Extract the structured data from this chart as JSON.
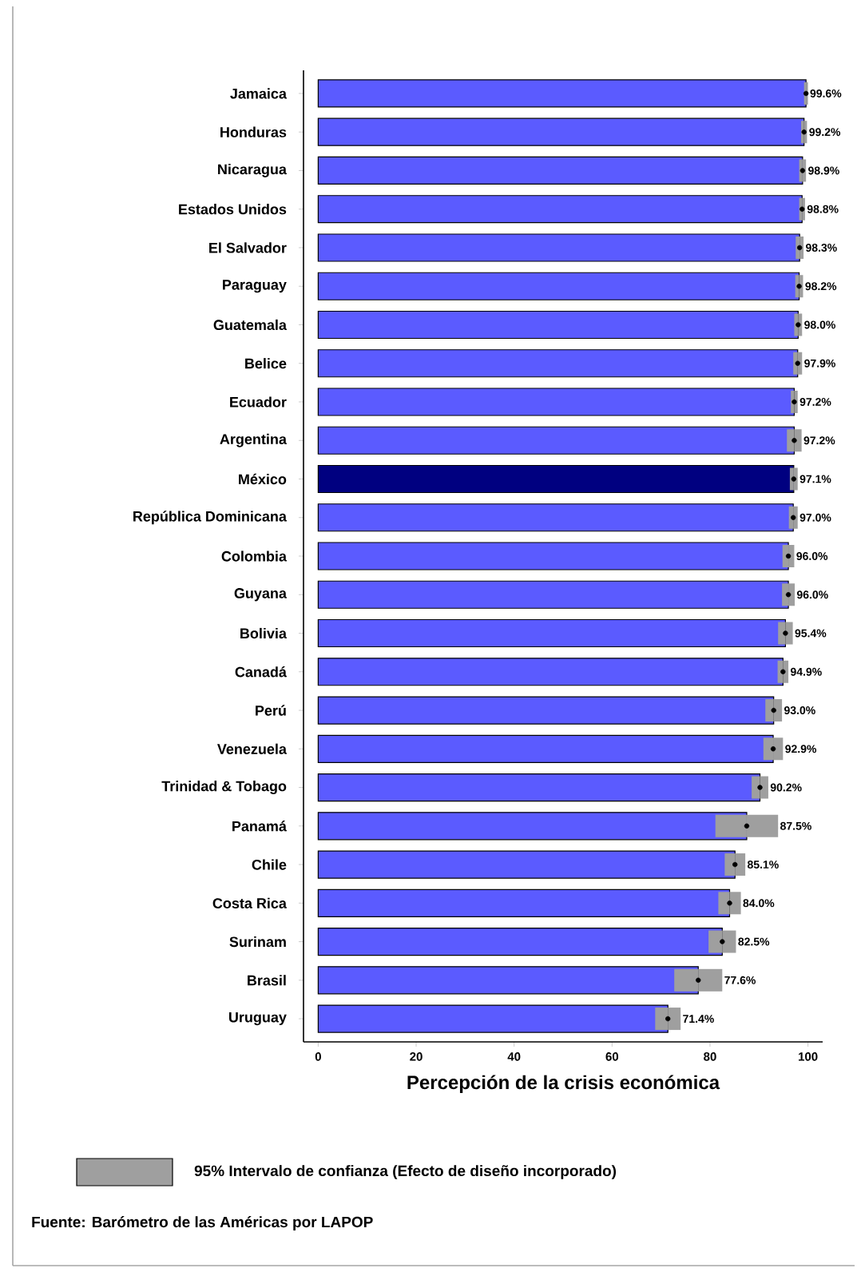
{
  "chart_data": {
    "type": "bar",
    "orientation": "horizontal",
    "xlabel": "Percepción de la crisis económica",
    "categories": [
      "Jamaica",
      "Honduras",
      "Nicaragua",
      "Estados Unidos",
      "El Salvador",
      "Paraguay",
      "Guatemala",
      "Belice",
      "Ecuador",
      "Argentina",
      "México",
      "República Dominicana",
      "Colombia",
      "Guyana",
      "Bolivia",
      "Canadá",
      "Perú",
      "Venezuela",
      "Trinidad & Tobago",
      "Panamá",
      "Chile",
      "Costa Rica",
      "Surinam",
      "Brasil",
      "Uruguay"
    ],
    "series": [
      {
        "values": [
          99.6,
          99.2,
          98.9,
          98.8,
          98.3,
          98.2,
          98.0,
          97.9,
          97.2,
          97.2,
          97.1,
          97.0,
          96.0,
          96.0,
          95.4,
          94.9,
          93.0,
          92.9,
          90.2,
          87.5,
          85.1,
          84.0,
          82.5,
          77.6,
          71.4
        ],
        "errors": [
          0.4,
          0.6,
          0.7,
          0.6,
          0.8,
          0.8,
          0.8,
          0.9,
          0.7,
          1.5,
          0.8,
          0.9,
          1.2,
          1.3,
          1.5,
          1.1,
          1.7,
          2.0,
          1.7,
          6.4,
          2.1,
          2.3,
          2.8,
          4.9,
          2.6
        ],
        "value_labels": [
          "99.6%",
          "99.2%",
          "98.9%",
          "98.8%",
          "98.3%",
          "98.2%",
          "98.0%",
          "97.9%",
          "97.2%",
          "97.2%",
          "97.1%",
          "97.0%",
          "96.0%",
          "96.0%",
          "95.4%",
          "94.9%",
          "93.0%",
          "92.9%",
          "90.2%",
          "87.5%",
          "85.1%",
          "84.0%",
          "82.5%",
          "77.6%",
          "71.4%"
        ],
        "colors": [
          "#5b5bff",
          "#5b5bff",
          "#5b5bff",
          "#5b5bff",
          "#5b5bff",
          "#5b5bff",
          "#5b5bff",
          "#5b5bff",
          "#5b5bff",
          "#5b5bff",
          "#000080",
          "#5b5bff",
          "#5b5bff",
          "#5b5bff",
          "#5b5bff",
          "#5b5bff",
          "#5b5bff",
          "#5b5bff",
          "#5b5bff",
          "#5b5bff",
          "#5b5bff",
          "#5b5bff",
          "#5b5bff",
          "#5b5bff",
          "#5b5bff"
        ]
      },
      {
        "type": "scatter",
        "marker": "circle",
        "color": "#000000",
        "x": [
          "Jamaica",
          "Honduras",
          "Nicaragua",
          "Estados Unidos",
          "El Salvador",
          "Paraguay",
          "Guatemala",
          "Belice",
          "Ecuador",
          "Argentina",
          "México",
          "República Dominicana",
          "Colombia",
          "Guyana",
          "Bolivia",
          "Canadá",
          "Perú",
          "Venezuela",
          "Trinidad & Tobago",
          "Panamá",
          "Chile",
          "Costa Rica",
          "Surinam",
          "Brasil",
          "Uruguay"
        ],
        "values": [
          99.6,
          99.2,
          98.9,
          98.8,
          98.3,
          98.2,
          98.0,
          97.9,
          97.2,
          97.2,
          97.1,
          97.0,
          96.0,
          96.0,
          95.4,
          94.9,
          93.0,
          92.9,
          90.2,
          87.5,
          85.1,
          84.0,
          82.5,
          77.6,
          71.4
        ]
      }
    ],
    "xlim": [
      -3,
      103
    ],
    "xticks": [
      0,
      20,
      40,
      60,
      80,
      100
    ],
    "annotations": [
      "95% Intervalo de confianza (Efecto de diseño incorporado)",
      "Fuente: Barómetro de las Américas por LAPOP"
    ]
  }
}
